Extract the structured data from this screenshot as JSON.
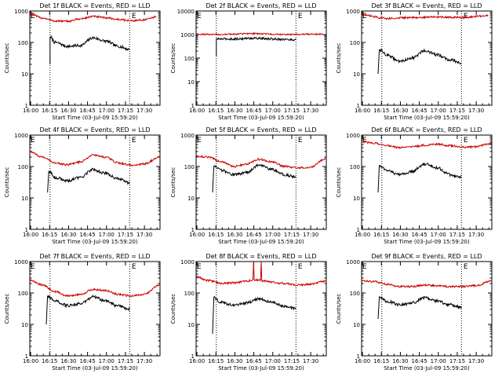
{
  "chart_data": [
    {
      "type": "line",
      "title": "Det 1f BLACK = Events, RED = LLD",
      "xlabel": "Start Time (03-Jul-09 15:59:20)",
      "ylabel": "Counts/sec",
      "y_scale": "log",
      "ylim": [
        1,
        1000
      ],
      "y_ticks": [
        "1",
        "10",
        "100",
        "1000"
      ],
      "x_ticks": [
        "16:00",
        "16:15",
        "16:30",
        "16:45",
        "17:00",
        "17:15",
        "17:30"
      ],
      "xlim_minutes": [
        0,
        103
      ],
      "markers": [
        {
          "label": "E",
          "time_min": 0
        },
        {
          "label": "E",
          "time_min": 80
        }
      ],
      "vlines_min": [
        16,
        79
      ],
      "series": [
        {
          "color": "#000000",
          "x_min": [
            16,
            16,
            20,
            30,
            40,
            50,
            60,
            70,
            79
          ],
          "y": [
            20,
            150,
            100,
            75,
            80,
            140,
            110,
            75,
            60
          ]
        },
        {
          "color": "#cc0000",
          "x_min": [
            0,
            10,
            20,
            30,
            40,
            50,
            60,
            70,
            80,
            90,
            100
          ],
          "y": [
            800,
            600,
            480,
            470,
            560,
            670,
            610,
            540,
            490,
            520,
            640
          ]
        }
      ]
    },
    {
      "type": "line",
      "title": "Det 2f BLACK = Events, RED = LLD",
      "xlabel": "Start Time (03-Jul-09 15:59:20)",
      "ylabel": "Counts/sec",
      "y_scale": "log",
      "ylim": [
        1,
        10000
      ],
      "y_ticks": [
        "1",
        "10",
        "100",
        "1000",
        "10000"
      ],
      "x_ticks": [
        "16:00",
        "16:15",
        "16:30",
        "16:45",
        "17:00",
        "17:15",
        "17:30"
      ],
      "xlim_minutes": [
        0,
        103
      ],
      "markers": [
        {
          "label": "E",
          "time_min": 0
        },
        {
          "label": "E",
          "time_min": 80
        }
      ],
      "vlines_min": [
        16,
        79
      ],
      "series": [
        {
          "color": "#000000",
          "x_min": [
            16,
            16,
            30,
            45,
            60,
            79
          ],
          "y": [
            120,
            650,
            650,
            700,
            650,
            600
          ]
        },
        {
          "color": "#cc0000",
          "x_min": [
            0,
            20,
            45,
            70,
            100
          ],
          "y": [
            1050,
            1000,
            1100,
            1000,
            1050
          ]
        }
      ]
    },
    {
      "type": "line",
      "title": "Det 3f BLACK = Events, RED = LLD",
      "xlabel": "Start Time (03-Jul-09 15:59:20)",
      "ylabel": "Counts/sec",
      "y_scale": "log",
      "ylim": [
        1,
        1000
      ],
      "y_ticks": [
        "1",
        "10",
        "100",
        "1000"
      ],
      "x_ticks": [
        "16:00",
        "16:15",
        "16:30",
        "16:45",
        "17:00",
        "17:15",
        "17:30"
      ],
      "xlim_minutes": [
        0,
        103
      ],
      "markers": [
        {
          "label": "E",
          "time_min": 0
        },
        {
          "label": "E",
          "time_min": 80
        }
      ],
      "vlines_min": [
        16,
        79
      ],
      "series": [
        {
          "color": "#000000",
          "x_min": [
            13,
            14,
            20,
            30,
            40,
            50,
            60,
            70,
            79
          ],
          "y": [
            10,
            60,
            40,
            25,
            32,
            55,
            40,
            28,
            22
          ]
        },
        {
          "color": "#cc0000",
          "x_min": [
            0,
            20,
            40,
            60,
            80,
            100
          ],
          "y": [
            750,
            580,
            620,
            640,
            620,
            700
          ]
        }
      ]
    },
    {
      "type": "line",
      "title": "Det 4f BLACK = Events, RED = LLD",
      "xlabel": "Start Time (03-Jul-09 15:59:20)",
      "ylabel": "Counts/sec",
      "y_scale": "log",
      "ylim": [
        1,
        1000
      ],
      "y_ticks": [
        "1",
        "10",
        "100",
        "1000"
      ],
      "x_ticks": [
        "16:00",
        "16:15",
        "16:30",
        "16:45",
        "17:00",
        "17:15",
        "17:30"
      ],
      "xlim_minutes": [
        0,
        103
      ],
      "markers": [
        {
          "label": "E",
          "time_min": 0
        },
        {
          "label": "E",
          "time_min": 80
        }
      ],
      "vlines_min": [
        16,
        79
      ],
      "series": [
        {
          "color": "#000000",
          "x_min": [
            14,
            15,
            20,
            30,
            40,
            50,
            60,
            70,
            79
          ],
          "y": [
            15,
            70,
            45,
            35,
            45,
            80,
            60,
            40,
            30
          ]
        },
        {
          "color": "#cc0000",
          "x_min": [
            0,
            10,
            20,
            30,
            40,
            50,
            60,
            70,
            80,
            90,
            103
          ],
          "y": [
            300,
            200,
            130,
            115,
            140,
            230,
            200,
            130,
            110,
            120,
            200
          ]
        }
      ]
    },
    {
      "type": "line",
      "title": "Det 5f BLACK = Events, RED = LLD",
      "xlabel": "Start Time (03-Jul-09 15:59:20)",
      "ylabel": "Counts/sec",
      "y_scale": "log",
      "ylim": [
        1,
        1000
      ],
      "y_ticks": [
        "1",
        "10",
        "100",
        "1000"
      ],
      "x_ticks": [
        "16:00",
        "16:15",
        "16:30",
        "16:45",
        "17:00",
        "17:15",
        "17:30"
      ],
      "xlim_minutes": [
        0,
        103
      ],
      "markers": [
        {
          "label": "E",
          "time_min": 0
        },
        {
          "label": "E",
          "time_min": 80
        }
      ],
      "vlines_min": [
        16,
        79
      ],
      "series": [
        {
          "color": "#000000",
          "x_min": [
            13,
            14,
            20,
            30,
            40,
            50,
            60,
            70,
            79
          ],
          "y": [
            15,
            100,
            75,
            55,
            65,
            115,
            80,
            55,
            45
          ]
        },
        {
          "color": "#cc0000",
          "x_min": [
            0,
            10,
            20,
            30,
            40,
            50,
            60,
            70,
            80,
            90,
            103
          ],
          "y": [
            210,
            200,
            140,
            100,
            120,
            170,
            140,
            100,
            90,
            95,
            180
          ]
        }
      ]
    },
    {
      "type": "line",
      "title": "Det 6f BLACK = Events, RED = LLD",
      "xlabel": "Start Time (03-Jul-09 15:59:20)",
      "ylabel": "Counts/sec",
      "y_scale": "log",
      "ylim": [
        1,
        1000
      ],
      "y_ticks": [
        "1",
        "10",
        "100",
        "1000"
      ],
      "x_ticks": [
        "16:00",
        "16:15",
        "16:30",
        "16:45",
        "17:00",
        "17:15",
        "17:30"
      ],
      "xlim_minutes": [
        0,
        103
      ],
      "markers": [
        {
          "label": "E",
          "time_min": 0
        },
        {
          "label": "E",
          "time_min": 80
        }
      ],
      "vlines_min": [
        16,
        79
      ],
      "series": [
        {
          "color": "#000000",
          "x_min": [
            13,
            14,
            20,
            30,
            40,
            50,
            60,
            70,
            79
          ],
          "y": [
            15,
            110,
            75,
            55,
            70,
            120,
            90,
            55,
            45
          ]
        },
        {
          "color": "#cc0000",
          "x_min": [
            0,
            10,
            20,
            30,
            40,
            50,
            60,
            70,
            80,
            90,
            103
          ],
          "y": [
            620,
            550,
            460,
            400,
            420,
            480,
            520,
            460,
            410,
            430,
            540
          ]
        }
      ]
    },
    {
      "type": "line",
      "title": "Det 7f BLACK = Events, RED = LLD",
      "xlabel": "Start Time (03-Jul-09 15:59:20)",
      "ylabel": "Counts/sec",
      "y_scale": "log",
      "ylim": [
        1,
        1000
      ],
      "y_ticks": [
        "1",
        "10",
        "100",
        "1000"
      ],
      "x_ticks": [
        "16:00",
        "16:15",
        "16:30",
        "16:45",
        "17:00",
        "17:15",
        "17:30"
      ],
      "xlim_minutes": [
        0,
        103
      ],
      "markers": [
        {
          "label": "E",
          "time_min": 0
        },
        {
          "label": "E",
          "time_min": 80
        }
      ],
      "vlines_min": [
        16,
        79
      ],
      "series": [
        {
          "color": "#000000",
          "x_min": [
            13,
            14,
            20,
            30,
            40,
            50,
            60,
            70,
            79
          ],
          "y": [
            10,
            80,
            55,
            40,
            45,
            75,
            55,
            38,
            30
          ]
        },
        {
          "color": "#cc0000",
          "x_min": [
            0,
            10,
            20,
            30,
            40,
            50,
            60,
            70,
            80,
            90,
            103
          ],
          "y": [
            250,
            180,
            110,
            80,
            90,
            130,
            120,
            90,
            80,
            90,
            180
          ]
        }
      ]
    },
    {
      "type": "line",
      "title": "Det 8f BLACK = Events, RED = LLD",
      "xlabel": "Start Time (03-Jul-09 15:59:20)",
      "ylabel": "Counts/sec",
      "y_scale": "log",
      "ylim": [
        1,
        1000
      ],
      "y_ticks": [
        "1",
        "10",
        "100",
        "1000"
      ],
      "x_ticks": [
        "16:00",
        "16:15",
        "16:30",
        "16:45",
        "17:00",
        "17:15",
        "17:30"
      ],
      "xlim_minutes": [
        0,
        103
      ],
      "markers": [
        {
          "label": "E",
          "time_min": 0
        },
        {
          "label": "E",
          "time_min": 80
        }
      ],
      "vlines_min": [
        16,
        79
      ],
      "series": [
        {
          "color": "#000000",
          "x_min": [
            13,
            14,
            20,
            30,
            40,
            50,
            60,
            70,
            79
          ],
          "y": [
            5,
            70,
            50,
            40,
            48,
            65,
            50,
            38,
            32
          ]
        },
        {
          "color": "#cc0000",
          "x_min": [
            0,
            10,
            20,
            30,
            40,
            45,
            45.5,
            46,
            51,
            51.5,
            52,
            60,
            70,
            80,
            90,
            103
          ],
          "y": [
            320,
            250,
            200,
            210,
            240,
            260,
            1000,
            260,
            260,
            1000,
            240,
            220,
            200,
            180,
            190,
            240
          ]
        }
      ]
    },
    {
      "type": "line",
      "title": "Det 9f BLACK = Events, RED = LLD",
      "xlabel": "Start Time (03-Jul-09 15:59:20)",
      "ylabel": "Counts/sec",
      "y_scale": "log",
      "ylim": [
        1,
        1000
      ],
      "y_ticks": [
        "1",
        "10",
        "100",
        "1000"
      ],
      "x_ticks": [
        "16:00",
        "16:15",
        "16:30",
        "16:45",
        "17:00",
        "17:15",
        "17:30"
      ],
      "xlim_minutes": [
        0,
        103
      ],
      "markers": [
        {
          "label": "E",
          "time_min": 0
        },
        {
          "label": "E",
          "time_min": 80
        }
      ],
      "vlines_min": [
        16,
        79
      ],
      "series": [
        {
          "color": "#000000",
          "x_min": [
            13,
            14,
            20,
            30,
            40,
            50,
            60,
            70,
            79
          ],
          "y": [
            15,
            75,
            55,
            42,
            48,
            70,
            55,
            42,
            35
          ]
        },
        {
          "color": "#cc0000",
          "x_min": [
            0,
            10,
            20,
            30,
            40,
            50,
            60,
            70,
            80,
            90,
            103
          ],
          "y": [
            250,
            230,
            190,
            160,
            160,
            180,
            170,
            160,
            160,
            170,
            240
          ]
        }
      ]
    }
  ]
}
